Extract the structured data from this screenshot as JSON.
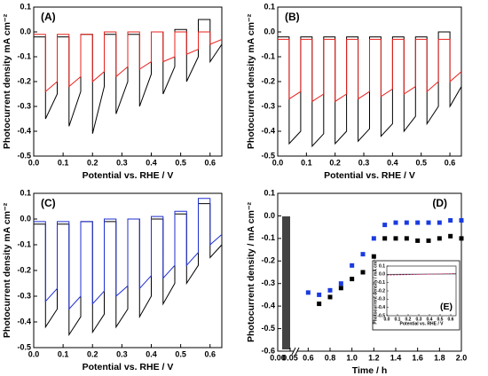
{
  "chart_data": [
    {
      "type": "line",
      "annotation": "(A)",
      "xlabel": "Potential vs. RHE / V",
      "ylabel": "Photocurrent density mA cm⁻²",
      "xlim": [
        0,
        0.64
      ],
      "xticks": [
        {
          "value": 0,
          "label": "0.0"
        },
        0.1,
        0.2,
        0.3,
        0.4,
        0.5,
        0.6
      ],
      "ylim": [
        -0.5,
        0.1
      ],
      "yticks": [
        -0.5,
        -0.4,
        -0.3,
        -0.2,
        -0.1,
        {
          "value": 0,
          "label": "0.0"
        },
        0.1
      ],
      "x": [
        0,
        0.04,
        0.04,
        0.08,
        0.08,
        0.12,
        0.12,
        0.16,
        0.16,
        0.2,
        0.2,
        0.24,
        0.24,
        0.28,
        0.28,
        0.32,
        0.32,
        0.36,
        0.36,
        0.4,
        0.4,
        0.44,
        0.44,
        0.48,
        0.48,
        0.52,
        0.52,
        0.56,
        0.56,
        0.6,
        0.6,
        0.64
      ],
      "series": [
        {
          "color": "#000000",
          "values": [
            -0.02,
            -0.02,
            -0.35,
            -0.25,
            -0.02,
            -0.02,
            -0.38,
            -0.24,
            -0.01,
            -0.01,
            -0.41,
            -0.22,
            -0.01,
            -0.01,
            -0.33,
            -0.2,
            -0.01,
            -0.01,
            -0.3,
            -0.17,
            0,
            0,
            -0.25,
            -0.14,
            0.01,
            0.01,
            -0.2,
            -0.1,
            0.05,
            0.05,
            -0.12,
            -0.05
          ]
        },
        {
          "color": "#e8201c",
          "values": [
            -0.01,
            -0.01,
            -0.24,
            -0.2,
            -0.01,
            -0.01,
            -0.22,
            -0.18,
            -0.01,
            -0.01,
            -0.2,
            -0.16,
            0,
            0,
            -0.18,
            -0.14,
            0,
            0,
            -0.15,
            -0.12,
            0,
            0,
            -0.12,
            -0.1,
            0,
            0,
            -0.09,
            -0.07,
            0,
            0,
            -0.05,
            -0.03
          ]
        }
      ]
    },
    {
      "type": "line",
      "annotation": "(B)",
      "xlabel": "Potential vs. RHE / V",
      "ylabel": "Photocurrent density mA cm⁻²",
      "xlim": [
        0,
        0.64
      ],
      "xticks": [
        {
          "value": 0,
          "label": "0.0"
        },
        0.1,
        0.2,
        0.3,
        0.4,
        0.5,
        0.6
      ],
      "ylim": [
        -0.5,
        0.1
      ],
      "yticks": [
        -0.5,
        -0.4,
        -0.3,
        -0.2,
        -0.1,
        {
          "value": 0,
          "label": "0.0"
        },
        0.1
      ],
      "x": [
        0,
        0.04,
        0.04,
        0.08,
        0.08,
        0.12,
        0.12,
        0.16,
        0.16,
        0.2,
        0.2,
        0.24,
        0.24,
        0.28,
        0.28,
        0.32,
        0.32,
        0.36,
        0.36,
        0.4,
        0.4,
        0.44,
        0.44,
        0.48,
        0.48,
        0.52,
        0.52,
        0.56,
        0.56,
        0.6,
        0.6,
        0.64
      ],
      "series": [
        {
          "color": "#000000",
          "values": [
            -0.02,
            -0.02,
            -0.45,
            -0.4,
            -0.02,
            -0.02,
            -0.46,
            -0.41,
            -0.02,
            -0.02,
            -0.45,
            -0.4,
            -0.02,
            -0.02,
            -0.44,
            -0.39,
            -0.02,
            -0.02,
            -0.42,
            -0.37,
            -0.02,
            -0.02,
            -0.4,
            -0.34,
            -0.02,
            -0.02,
            -0.37,
            -0.3,
            0,
            0,
            -0.3,
            -0.22
          ]
        },
        {
          "color": "#e8201c",
          "values": [
            -0.03,
            -0.03,
            -0.27,
            -0.24,
            -0.03,
            -0.03,
            -0.28,
            -0.25,
            -0.03,
            -0.03,
            -0.28,
            -0.25,
            -0.03,
            -0.03,
            -0.27,
            -0.24,
            -0.03,
            -0.03,
            -0.26,
            -0.23,
            -0.03,
            -0.03,
            -0.25,
            -0.22,
            -0.03,
            -0.03,
            -0.24,
            -0.2,
            -0.03,
            -0.03,
            -0.2,
            -0.16
          ]
        }
      ]
    },
    {
      "type": "line",
      "annotation": "(C)",
      "xlabel": "Potential vs. RHE / V",
      "ylabel": "Photocurrent density mA cm⁻²",
      "xlim": [
        0,
        0.64
      ],
      "xticks": [
        {
          "value": 0,
          "label": "0.0"
        },
        0.1,
        0.2,
        0.3,
        0.4,
        0.5,
        0.6
      ],
      "ylim": [
        -0.5,
        0.1
      ],
      "yticks": [
        -0.5,
        -0.4,
        -0.3,
        -0.2,
        -0.1,
        {
          "value": 0,
          "label": "0.0"
        },
        0.1
      ],
      "x": [
        0,
        0.04,
        0.04,
        0.08,
        0.08,
        0.12,
        0.12,
        0.16,
        0.16,
        0.2,
        0.2,
        0.24,
        0.24,
        0.28,
        0.28,
        0.32,
        0.32,
        0.36,
        0.36,
        0.4,
        0.4,
        0.44,
        0.44,
        0.48,
        0.48,
        0.52,
        0.52,
        0.56,
        0.56,
        0.6,
        0.6,
        0.64
      ],
      "series": [
        {
          "color": "#000000",
          "values": [
            -0.02,
            -0.02,
            -0.42,
            -0.35,
            -0.02,
            -0.02,
            -0.45,
            -0.38,
            -0.01,
            -0.01,
            -0.44,
            -0.37,
            -0.01,
            -0.01,
            -0.42,
            -0.35,
            0,
            0,
            -0.38,
            -0.3,
            0,
            0,
            -0.33,
            -0.25,
            0.02,
            0.02,
            -0.25,
            -0.18,
            0.06,
            0.06,
            -0.15,
            -0.1
          ]
        },
        {
          "color": "#1f2fd0",
          "values": [
            -0.01,
            -0.01,
            -0.32,
            -0.27,
            -0.01,
            -0.01,
            -0.35,
            -0.3,
            -0.01,
            -0.01,
            -0.33,
            -0.28,
            0,
            0,
            -0.3,
            -0.26,
            0,
            0,
            -0.27,
            -0.22,
            0.01,
            0.01,
            -0.23,
            -0.18,
            0.03,
            0.03,
            -0.18,
            -0.13,
            0.08,
            0.08,
            -0.1,
            -0.06
          ]
        }
      ]
    },
    {
      "type": "scatter",
      "annotation": "(D)",
      "xlabel": "Time / h",
      "ylabel": "Photocurrent density / mA cm⁻²",
      "xlim": [
        0,
        2
      ],
      "xbreak": [
        0.05,
        0.5
      ],
      "xticks": [
        {
          "value": 0,
          "label": "0.00"
        },
        {
          "value": 0.05,
          "label": "0.05"
        },
        0.6,
        0.8,
        {
          "value": 1,
          "label": "1.0"
        },
        1.2,
        1.4,
        1.6,
        1.8,
        {
          "value": 2,
          "label": "2.0"
        }
      ],
      "ylim": [
        -0.6,
        0.1
      ],
      "yticks": [
        -0.6,
        -0.5,
        -0.4,
        -0.3,
        -0.2,
        -0.1,
        {
          "value": 0,
          "label": "0.0"
        },
        0.1
      ],
      "series": [
        {
          "color": "#000000",
          "x": [
            0.7,
            0.8,
            0.9,
            1.0,
            1.1,
            1.2,
            1.3,
            1.4,
            1.5,
            1.6,
            1.7,
            1.8,
            1.9,
            2.0
          ],
          "values": [
            -0.39,
            -0.36,
            -0.32,
            -0.28,
            -0.25,
            -0.18,
            -0.1,
            -0.1,
            -0.1,
            -0.11,
            -0.11,
            -0.1,
            -0.09,
            -0.1
          ]
        },
        {
          "color": "#1a3be0",
          "x": [
            0.6,
            0.7,
            0.8,
            0.9,
            1.0,
            1.1,
            1.2,
            1.3,
            1.4,
            1.5,
            1.6,
            1.7,
            1.8,
            1.9,
            2.0
          ],
          "values": [
            -0.34,
            -0.35,
            -0.33,
            -0.3,
            -0.22,
            -0.17,
            -0.1,
            -0.04,
            -0.03,
            -0.03,
            -0.03,
            -0.03,
            -0.03,
            -0.02,
            -0.02
          ]
        }
      ]
    },
    {
      "type": "line",
      "annotation": "(E)",
      "xlabel": "Potential vs. RHE / V",
      "ylabel": "Photocurrent density / mA cm⁻²",
      "xlim": [
        0,
        0.65
      ],
      "xticks": [
        {
          "value": 0,
          "label": "0.0"
        },
        0.1,
        0.2,
        0.3,
        0.4,
        0.5,
        0.6
      ],
      "ylim": [
        -0.5,
        0.1
      ],
      "yticks": [
        -0.5,
        -0.4,
        -0.3,
        -0.2,
        -0.1,
        {
          "value": 0,
          "label": "0.0"
        },
        0.1
      ],
      "x": [
        0,
        0.65
      ],
      "series": [
        {
          "color": "#000000",
          "values": [
            0,
            0.005
          ]
        },
        {
          "color": "#d0207a",
          "dashed": true,
          "values": [
            -0.01,
            0.01
          ]
        }
      ]
    }
  ]
}
